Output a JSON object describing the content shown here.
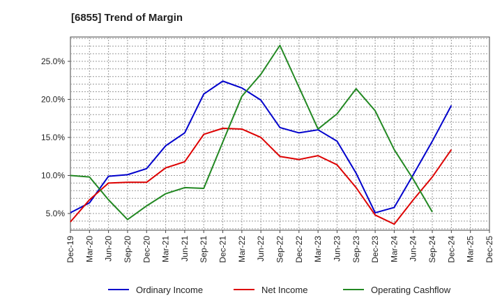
{
  "chart_data": {
    "type": "line",
    "title": "[6855]  Trend of Margin",
    "xlabel": "",
    "ylabel": "",
    "x_ticks": [
      "Dec-19",
      "Mar-20",
      "Jun-20",
      "Sep-20",
      "Dec-20",
      "Mar-21",
      "Jun-21",
      "Sep-21",
      "Dec-21",
      "Mar-22",
      "Jun-22",
      "Sep-22",
      "Dec-22",
      "Mar-23",
      "Jun-23",
      "Sep-23",
      "Dec-23",
      "Mar-24",
      "Jun-24",
      "Sep-24",
      "Dec-24",
      "Mar-25",
      "Dec-25"
    ],
    "y_ticks": [
      {
        "value": 5,
        "label": "5.0%"
      },
      {
        "value": 10,
        "label": "10.0%"
      },
      {
        "value": 15,
        "label": "15.0%"
      },
      {
        "value": 20,
        "label": "20.0%"
      },
      {
        "value": 25,
        "label": "25.0%"
      }
    ],
    "ylim": [
      2.8,
      28.2
    ],
    "grid": true,
    "legend_position": "bottom",
    "series": [
      {
        "name": "Ordinary Income",
        "color": "#0000cc",
        "values": [
          5.1,
          6.4,
          9.9,
          10.1,
          10.9,
          13.9,
          15.6,
          20.7,
          22.4,
          21.5,
          19.9,
          16.3,
          15.6,
          16.0,
          14.5,
          10.3,
          5.1,
          5.8,
          10.1,
          14.5,
          19.2
        ]
      },
      {
        "name": "Net Income",
        "color": "#dd0000",
        "values": [
          3.9,
          6.8,
          9.0,
          9.1,
          9.1,
          11.0,
          11.8,
          15.4,
          16.2,
          16.1,
          15.0,
          12.5,
          12.1,
          12.6,
          11.4,
          8.4,
          4.8,
          3.6,
          6.8,
          9.8,
          13.4
        ]
      },
      {
        "name": "Operating Cashflow",
        "color": "#228822",
        "values": [
          10.0,
          9.8,
          6.8,
          4.2,
          6.0,
          7.6,
          8.4,
          8.3,
          14.4,
          20.4,
          23.3,
          27.1,
          21.6,
          16.1,
          18.1,
          21.4,
          18.5,
          13.4,
          9.5,
          5.2,
          null
        ]
      }
    ]
  }
}
